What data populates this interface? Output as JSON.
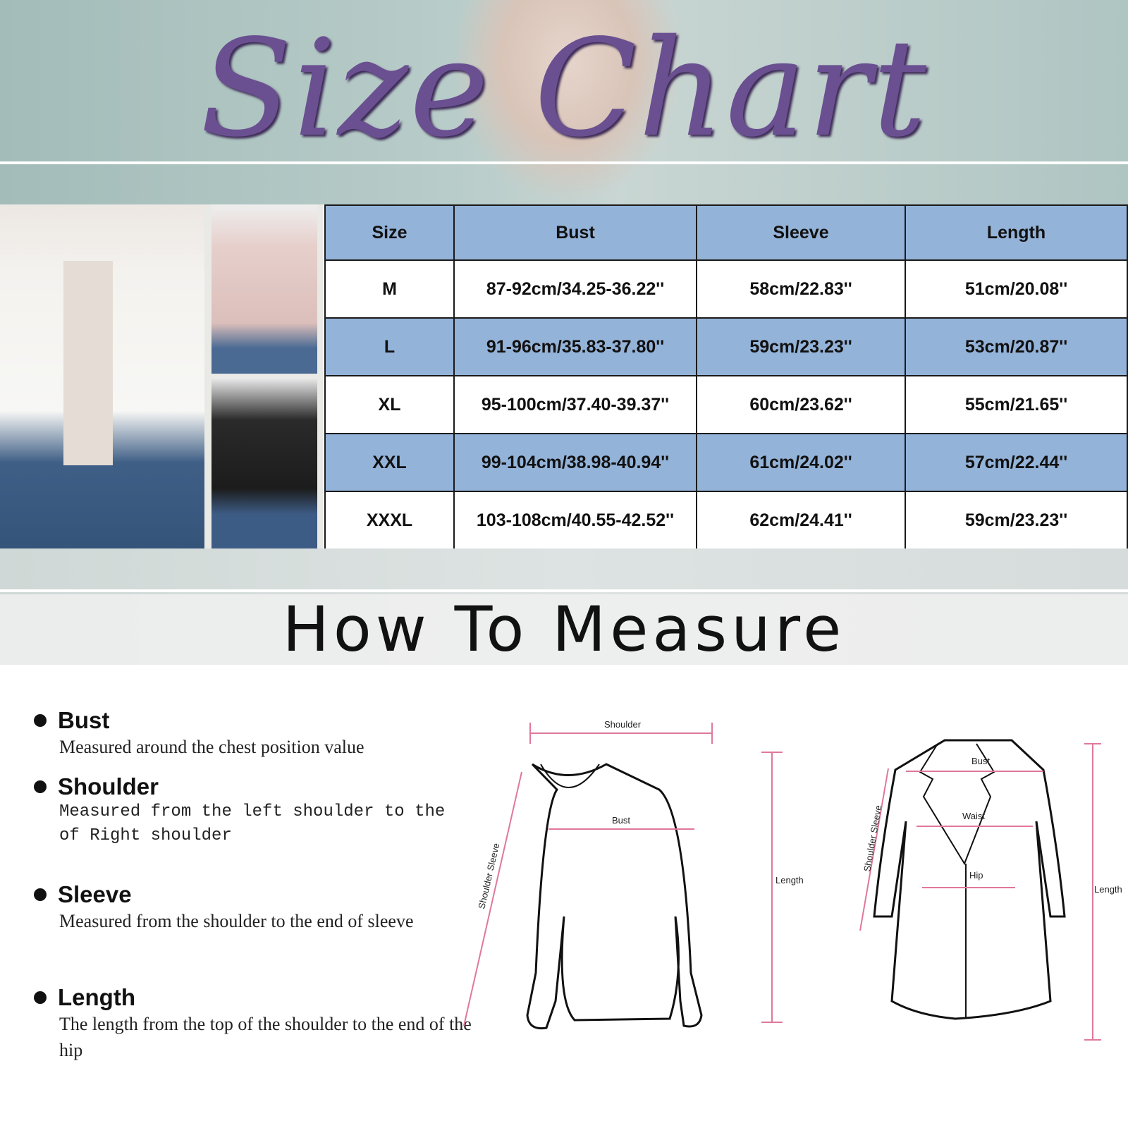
{
  "title": "Size Chart",
  "table": {
    "headers": [
      "Size",
      "Bust",
      "Sleeve",
      "Length"
    ],
    "rows": [
      [
        "M",
        "87-92cm/34.25-36.22''",
        "58cm/22.83''",
        "51cm/20.08''"
      ],
      [
        "L",
        "91-96cm/35.83-37.80''",
        "59cm/23.23''",
        "53cm/20.87''"
      ],
      [
        "XL",
        "95-100cm/37.40-39.37''",
        "60cm/23.62''",
        "55cm/21.65''"
      ],
      [
        "XXL",
        "99-104cm/38.98-40.94''",
        "61cm/24.02''",
        "57cm/22.44''"
      ],
      [
        "XXXL",
        "103-108cm/40.55-42.52''",
        "62cm/24.41''",
        "59cm/23.23''"
      ]
    ],
    "header_color": "#94b3d9"
  },
  "measure_title": "How To Measure",
  "guide": [
    {
      "label": "Bust",
      "desc": "Measured around the chest position value"
    },
    {
      "label": "Shoulder",
      "desc": "Measured from the left shoulder to the of Right shoulder"
    },
    {
      "label": "Sleeve",
      "desc": "Measured from the shoulder to the end of sleeve"
    },
    {
      "label": "Length",
      "desc": "The length from the top of the shoulder to the end of the hip"
    }
  ],
  "diagram": {
    "sweater": {
      "shoulder": "Shoulder",
      "bust": "Bust",
      "sleeve": "Shoulder Sleeve",
      "length": "Length"
    },
    "coat": {
      "bust": "Bust",
      "waist": "Waist",
      "hip": "Hip",
      "sleeve": "Shoulder Sleeve",
      "length": "Length"
    },
    "line_color": "#e0789a"
  },
  "photos": [
    "white-jacket",
    "pink-jacket",
    "black-jacket"
  ]
}
